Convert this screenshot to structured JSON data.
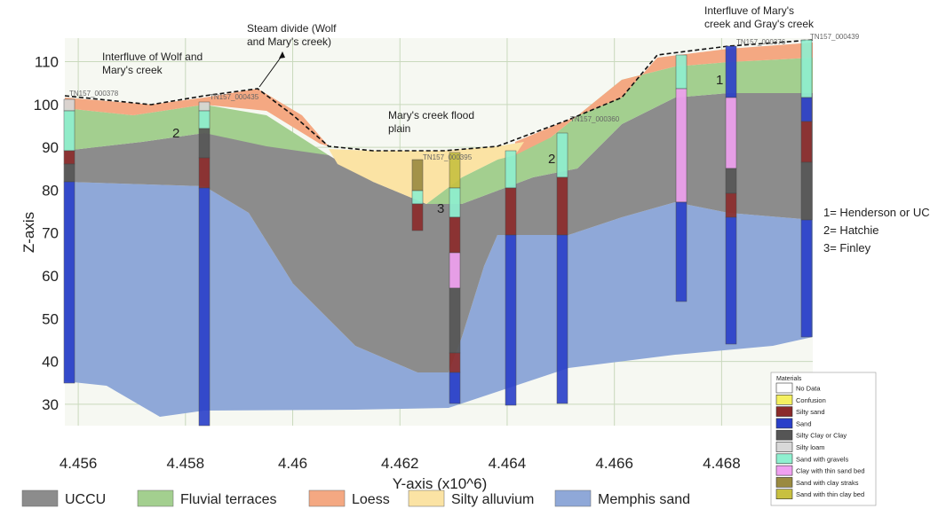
{
  "chart_data": {
    "type": "cross-section",
    "xlabel": "Y-axis (x10^6)",
    "ylabel": "Z-axis",
    "xlim": [
      4.45575,
      4.4697
    ],
    "ylim": [
      25,
      115.5
    ],
    "xticks": [
      4.456,
      4.458,
      4.46,
      4.462,
      4.464,
      4.466,
      4.468
    ],
    "yticks": [
      30,
      40,
      50,
      60,
      70,
      80,
      90,
      100,
      110
    ],
    "grid": true,
    "layers": [
      {
        "name": "UCCU",
        "color": "#8c8c8c"
      },
      {
        "name": "Fluvial terraces",
        "color": "#a3cf8f"
      },
      {
        "name": "Loess",
        "color": "#f4a882"
      },
      {
        "name": "Silty alluvium",
        "color": "#fbe3a4"
      },
      {
        "name": "Memphis sand",
        "color": "#8fa8d8"
      }
    ],
    "materials": {
      "title": "Materials",
      "items": [
        {
          "name": "No Data",
          "color": "#ffffff"
        },
        {
          "name": "Confusion",
          "color": "#f5f060"
        },
        {
          "name": "Silty sand",
          "color": "#8b2a2a"
        },
        {
          "name": "Sand",
          "color": "#2a3fc9"
        },
        {
          "name": "Silty Clay or Clay",
          "color": "#555555"
        },
        {
          "name": "Silty loam",
          "color": "#d8d8d8"
        },
        {
          "name": "Sand with gravels",
          "color": "#8ff0d0"
        },
        {
          "name": "Clay with thin sand bed",
          "color": "#f0a0f0"
        },
        {
          "name": "Sand with clay straks",
          "color": "#9a8a40"
        },
        {
          "name": "Sand with thin clay bed",
          "color": "#c8c040"
        }
      ]
    },
    "annotations": [
      [
        "Steam divide (Wolf",
        "and Mary's creek)"
      ],
      [
        "Interfluve of Wolf and",
        "Mary's creek"
      ],
      [
        "Interfluve of Mary's",
        "creek and Gray's creek"
      ],
      [
        "Mary's creek flood",
        "plain"
      ]
    ],
    "zone_labels": [
      "1",
      "2",
      "2",
      "3"
    ],
    "key": [
      "1= Henderson or UC",
      "2= Hatchie",
      "3= Finley"
    ],
    "boreholes": [
      "TN157_000378",
      "TN157_000435",
      "TN157_000395",
      "TN157_000360",
      "TN157_000376",
      "TN157_000439"
    ]
  }
}
